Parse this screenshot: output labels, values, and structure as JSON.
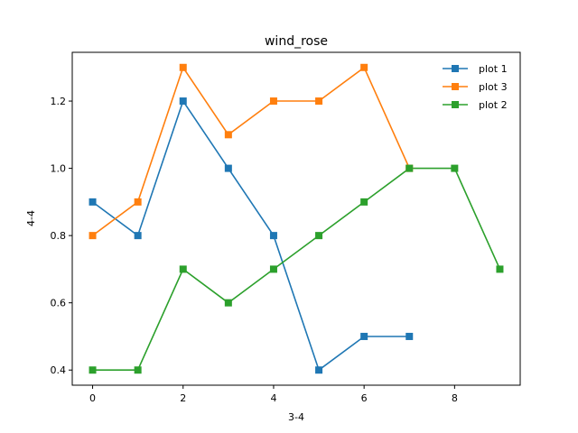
{
  "chart_data": {
    "type": "line",
    "title": "wind_rose",
    "xlabel": "3-4",
    "ylabel": "4-4",
    "xlim": [
      -0.45,
      9.45
    ],
    "ylim": [
      0.355,
      1.345
    ],
    "xticks": [
      0,
      2,
      4,
      6,
      8
    ],
    "yticks": [
      0.4,
      0.6,
      0.8,
      1.0,
      1.2
    ],
    "xtick_labels": [
      "0",
      "2",
      "4",
      "6",
      "8"
    ],
    "ytick_labels": [
      "0.4",
      "0.6",
      "0.8",
      "1.0",
      "1.2"
    ],
    "grid": false,
    "legend_position": "top-right",
    "marker": "square",
    "series": [
      {
        "name": "plot 1",
        "color": "#1f77b4",
        "x": [
          0,
          1,
          2,
          3,
          4,
          5,
          6,
          7
        ],
        "y": [
          0.9,
          0.8,
          1.2,
          1.0,
          0.8,
          0.4,
          0.5,
          0.5
        ]
      },
      {
        "name": "plot 3",
        "color": "#ff7f0e",
        "x": [
          0,
          1,
          2,
          3,
          4,
          5,
          6,
          7
        ],
        "y": [
          0.8,
          0.9,
          1.3,
          1.1,
          1.2,
          1.2,
          1.3,
          1.0
        ]
      },
      {
        "name": "plot 2",
        "color": "#2ca02c",
        "x": [
          0,
          1,
          2,
          3,
          4,
          5,
          6,
          7,
          8,
          9
        ],
        "y": [
          0.4,
          0.4,
          0.7,
          0.6,
          0.7,
          0.8,
          0.9,
          1.0,
          1.0,
          0.7
        ]
      }
    ],
    "legend_order": [
      "plot 1",
      "plot 3",
      "plot 2"
    ]
  }
}
